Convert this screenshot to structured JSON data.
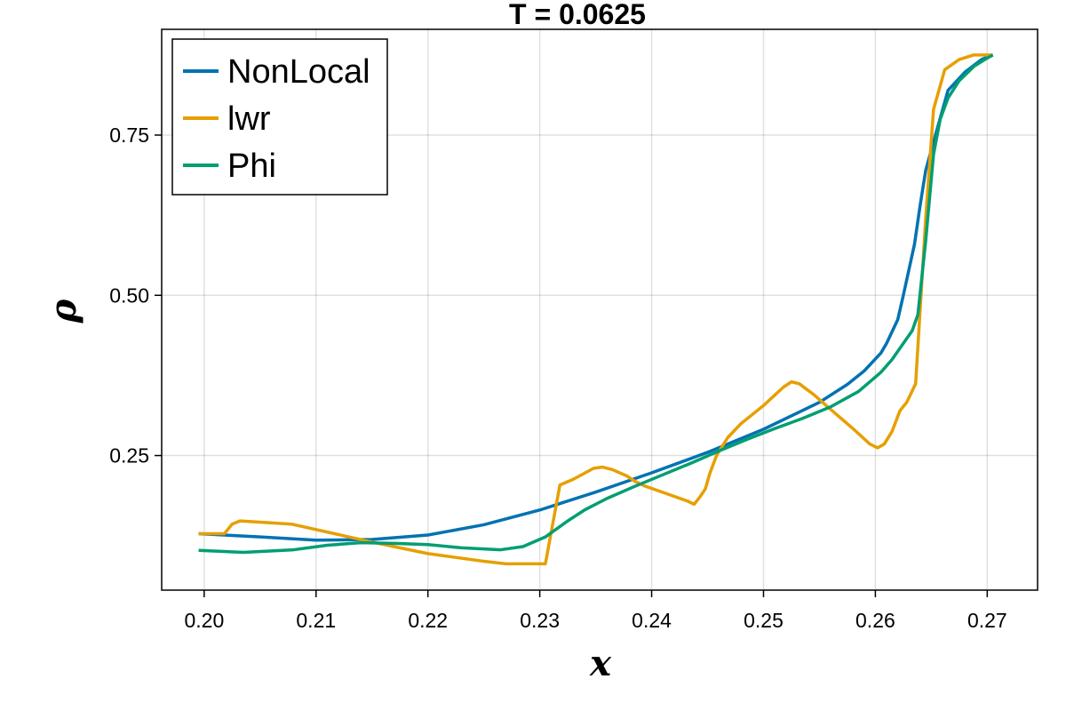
{
  "chart_data": {
    "type": "line",
    "title": "T = 0.0625",
    "xlabel": "x",
    "ylabel": "ρ",
    "xlim": [
      0.1962,
      0.2745
    ],
    "ylim": [
      0.04,
      0.915
    ],
    "x_ticks": [
      0.2,
      0.21,
      0.22,
      0.23,
      0.24,
      0.25,
      0.26,
      0.27
    ],
    "x_tick_labels": [
      "0.20",
      "0.21",
      "0.22",
      "0.23",
      "0.24",
      "0.25",
      "0.26",
      "0.27"
    ],
    "y_ticks": [
      0.25,
      0.5,
      0.75
    ],
    "y_tick_labels": [
      "0.25",
      "0.50",
      "0.75"
    ],
    "grid": true,
    "legend_position": "top-left",
    "series": [
      {
        "name": "NonLocal",
        "color": "#0072b2",
        "points": [
          [
            0.1995,
            0.128
          ],
          [
            0.205,
            0.123
          ],
          [
            0.21,
            0.118
          ],
          [
            0.215,
            0.119
          ],
          [
            0.22,
            0.126
          ],
          [
            0.225,
            0.142
          ],
          [
            0.23,
            0.165
          ],
          [
            0.235,
            0.193
          ],
          [
            0.24,
            0.223
          ],
          [
            0.245,
            0.255
          ],
          [
            0.25,
            0.291
          ],
          [
            0.255,
            0.333
          ],
          [
            0.2575,
            0.361
          ],
          [
            0.259,
            0.382
          ],
          [
            0.2605,
            0.41
          ],
          [
            0.261,
            0.425
          ],
          [
            0.262,
            0.462
          ],
          [
            0.2625,
            0.5
          ],
          [
            0.2635,
            0.58
          ],
          [
            0.264,
            0.64
          ],
          [
            0.2645,
            0.695
          ],
          [
            0.2655,
            0.758
          ],
          [
            0.2665,
            0.82
          ],
          [
            0.268,
            0.848
          ],
          [
            0.2695,
            0.868
          ],
          [
            0.2705,
            0.875
          ]
        ]
      },
      {
        "name": "lwr",
        "color": "#e69f00",
        "points": [
          [
            0.1995,
            0.128
          ],
          [
            0.2018,
            0.128
          ],
          [
            0.2025,
            0.143
          ],
          [
            0.2032,
            0.148
          ],
          [
            0.2078,
            0.143
          ],
          [
            0.215,
            0.115
          ],
          [
            0.22,
            0.097
          ],
          [
            0.225,
            0.085
          ],
          [
            0.227,
            0.081
          ],
          [
            0.2305,
            0.081
          ],
          [
            0.2318,
            0.204
          ],
          [
            0.233,
            0.213
          ],
          [
            0.2348,
            0.23
          ],
          [
            0.2356,
            0.232
          ],
          [
            0.2365,
            0.228
          ],
          [
            0.2378,
            0.218
          ],
          [
            0.2385,
            0.21
          ],
          [
            0.2393,
            0.203
          ],
          [
            0.2432,
            0.179
          ],
          [
            0.2438,
            0.174
          ],
          [
            0.2443,
            0.185
          ],
          [
            0.2448,
            0.198
          ],
          [
            0.2452,
            0.222
          ],
          [
            0.2458,
            0.25
          ],
          [
            0.2468,
            0.278
          ],
          [
            0.248,
            0.3
          ],
          [
            0.25,
            0.328
          ],
          [
            0.2518,
            0.357
          ],
          [
            0.2525,
            0.365
          ],
          [
            0.2532,
            0.362
          ],
          [
            0.2545,
            0.345
          ],
          [
            0.2558,
            0.325
          ],
          [
            0.258,
            0.292
          ],
          [
            0.2595,
            0.268
          ],
          [
            0.2602,
            0.262
          ],
          [
            0.2608,
            0.268
          ],
          [
            0.2615,
            0.288
          ],
          [
            0.2622,
            0.32
          ],
          [
            0.2628,
            0.333
          ],
          [
            0.2636,
            0.362
          ],
          [
            0.2645,
            0.62
          ],
          [
            0.2652,
            0.79
          ],
          [
            0.2662,
            0.852
          ],
          [
            0.2675,
            0.868
          ],
          [
            0.2688,
            0.875
          ],
          [
            0.2705,
            0.875
          ]
        ]
      },
      {
        "name": "Phi",
        "color": "#009e73",
        "points": [
          [
            0.1995,
            0.102
          ],
          [
            0.2035,
            0.099
          ],
          [
            0.208,
            0.103
          ],
          [
            0.211,
            0.11
          ],
          [
            0.214,
            0.114
          ],
          [
            0.217,
            0.113
          ],
          [
            0.22,
            0.111
          ],
          [
            0.223,
            0.106
          ],
          [
            0.2265,
            0.103
          ],
          [
            0.2285,
            0.108
          ],
          [
            0.2305,
            0.123
          ],
          [
            0.2325,
            0.148
          ],
          [
            0.234,
            0.165
          ],
          [
            0.236,
            0.183
          ],
          [
            0.2385,
            0.202
          ],
          [
            0.241,
            0.22
          ],
          [
            0.2435,
            0.238
          ],
          [
            0.246,
            0.257
          ],
          [
            0.2485,
            0.275
          ],
          [
            0.251,
            0.292
          ],
          [
            0.2535,
            0.308
          ],
          [
            0.256,
            0.326
          ],
          [
            0.2585,
            0.35
          ],
          [
            0.2605,
            0.38
          ],
          [
            0.2615,
            0.4
          ],
          [
            0.2625,
            0.425
          ],
          [
            0.2633,
            0.445
          ],
          [
            0.2638,
            0.47
          ],
          [
            0.2645,
            0.585
          ],
          [
            0.2652,
            0.72
          ],
          [
            0.2658,
            0.775
          ],
          [
            0.2665,
            0.808
          ],
          [
            0.2675,
            0.835
          ],
          [
            0.2688,
            0.857
          ],
          [
            0.2698,
            0.868
          ],
          [
            0.2705,
            0.875
          ]
        ]
      }
    ]
  }
}
